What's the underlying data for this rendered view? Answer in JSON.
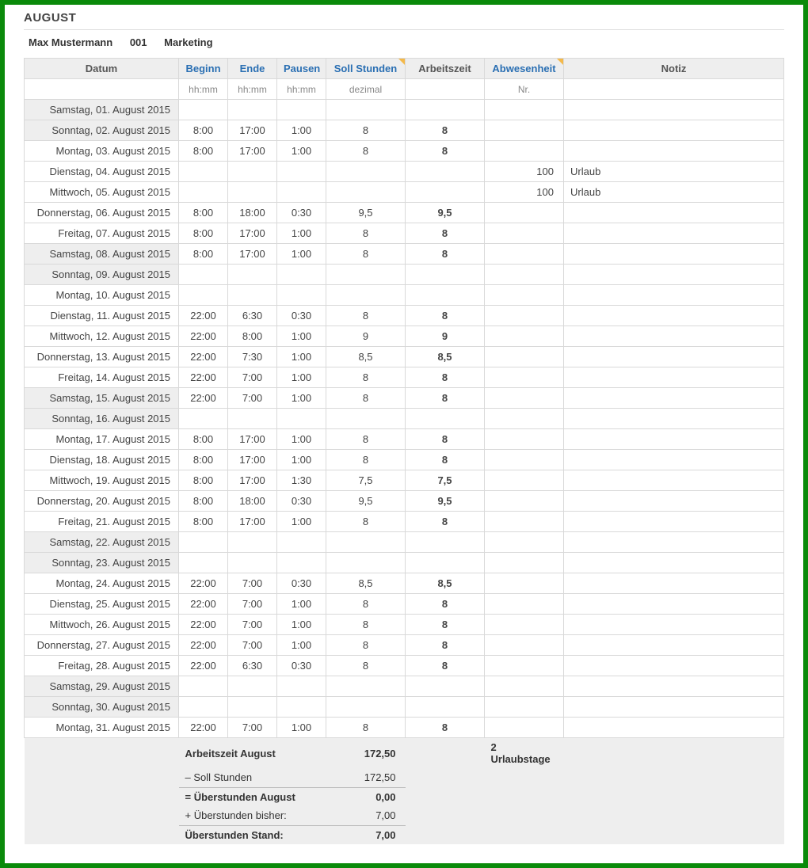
{
  "month_title": "AUGUST",
  "employee": {
    "name": "Max Mustermann",
    "id": "001",
    "dept": "Marketing"
  },
  "columns": {
    "date": {
      "label": "Datum",
      "sub": ""
    },
    "begin": {
      "label": "Beginn",
      "sub": "hh:mm"
    },
    "end": {
      "label": "Ende",
      "sub": "hh:mm"
    },
    "pause": {
      "label": "Pausen",
      "sub": "hh:mm"
    },
    "soll": {
      "label": "Soll Stunden",
      "sub": "dezimal"
    },
    "work": {
      "label": "Arbeitszeit",
      "sub": ""
    },
    "absent": {
      "label": "Abwesenheit",
      "sub": "Nr."
    },
    "note": {
      "label": "Notiz",
      "sub": ""
    }
  },
  "rows": [
    {
      "date": "Samstag, 01. August 2015",
      "weekend": true
    },
    {
      "date": "Sonntag, 02. August 2015",
      "weekend": true,
      "begin": "8:00",
      "end": "17:00",
      "pause": "1:00",
      "soll": "8",
      "work": "8"
    },
    {
      "date": "Montag, 03. August 2015",
      "begin": "8:00",
      "end": "17:00",
      "pause": "1:00",
      "soll": "8",
      "work": "8"
    },
    {
      "date": "Dienstag, 04. August 2015",
      "absent": "100",
      "note": "Urlaub"
    },
    {
      "date": "Mittwoch, 05. August 2015",
      "absent": "100",
      "note": "Urlaub"
    },
    {
      "date": "Donnerstag, 06. August 2015",
      "begin": "8:00",
      "end": "18:00",
      "pause": "0:30",
      "soll": "9,5",
      "work": "9,5"
    },
    {
      "date": "Freitag, 07. August 2015",
      "begin": "8:00",
      "end": "17:00",
      "pause": "1:00",
      "soll": "8",
      "work": "8"
    },
    {
      "date": "Samstag, 08. August 2015",
      "weekend": true,
      "begin": "8:00",
      "end": "17:00",
      "pause": "1:00",
      "soll": "8",
      "work": "8"
    },
    {
      "date": "Sonntag, 09. August 2015",
      "weekend": true
    },
    {
      "date": "Montag, 10. August 2015"
    },
    {
      "date": "Dienstag, 11. August 2015",
      "begin": "22:00",
      "end": "6:30",
      "pause": "0:30",
      "soll": "8",
      "work": "8"
    },
    {
      "date": "Mittwoch, 12. August 2015",
      "begin": "22:00",
      "end": "8:00",
      "pause": "1:00",
      "soll": "9",
      "work": "9"
    },
    {
      "date": "Donnerstag, 13. August 2015",
      "begin": "22:00",
      "end": "7:30",
      "pause": "1:00",
      "soll": "8,5",
      "work": "8,5"
    },
    {
      "date": "Freitag, 14. August 2015",
      "begin": "22:00",
      "end": "7:00",
      "pause": "1:00",
      "soll": "8",
      "work": "8"
    },
    {
      "date": "Samstag, 15. August 2015",
      "weekend": true,
      "begin": "22:00",
      "end": "7:00",
      "pause": "1:00",
      "soll": "8",
      "work": "8"
    },
    {
      "date": "Sonntag, 16. August 2015",
      "weekend": true
    },
    {
      "date": "Montag, 17. August 2015",
      "begin": "8:00",
      "end": "17:00",
      "pause": "1:00",
      "soll": "8",
      "work": "8"
    },
    {
      "date": "Dienstag, 18. August 2015",
      "begin": "8:00",
      "end": "17:00",
      "pause": "1:00",
      "soll": "8",
      "work": "8"
    },
    {
      "date": "Mittwoch, 19. August 2015",
      "begin": "8:00",
      "end": "17:00",
      "pause": "1:30",
      "soll": "7,5",
      "work": "7,5"
    },
    {
      "date": "Donnerstag, 20. August 2015",
      "begin": "8:00",
      "end": "18:00",
      "pause": "0:30",
      "soll": "9,5",
      "work": "9,5"
    },
    {
      "date": "Freitag, 21. August 2015",
      "begin": "8:00",
      "end": "17:00",
      "pause": "1:00",
      "soll": "8",
      "work": "8"
    },
    {
      "date": "Samstag, 22. August 2015",
      "weekend": true
    },
    {
      "date": "Sonntag, 23. August 2015",
      "weekend": true
    },
    {
      "date": "Montag, 24. August 2015",
      "begin": "22:00",
      "end": "7:00",
      "pause": "0:30",
      "soll": "8,5",
      "work": "8,5"
    },
    {
      "date": "Dienstag, 25. August 2015",
      "begin": "22:00",
      "end": "7:00",
      "pause": "1:00",
      "soll": "8",
      "work": "8"
    },
    {
      "date": "Mittwoch, 26. August 2015",
      "begin": "22:00",
      "end": "7:00",
      "pause": "1:00",
      "soll": "8",
      "work": "8"
    },
    {
      "date": "Donnerstag, 27. August 2015",
      "begin": "22:00",
      "end": "7:00",
      "pause": "1:00",
      "soll": "8",
      "work": "8"
    },
    {
      "date": "Freitag, 28. August 2015",
      "begin": "22:00",
      "end": "6:30",
      "pause": "0:30",
      "soll": "8",
      "work": "8"
    },
    {
      "date": "Samstag, 29. August 2015",
      "weekend": true
    },
    {
      "date": "Sonntag, 30. August 2015",
      "weekend": true
    },
    {
      "date": "Montag, 31. August 2015",
      "begin": "22:00",
      "end": "7:00",
      "pause": "1:00",
      "soll": "8",
      "work": "8"
    }
  ],
  "summary": {
    "lines": [
      {
        "label": "Arbeitszeit August",
        "value": "172,50",
        "bold": true,
        "divider": false
      },
      {
        "label": "– Soll Stunden",
        "value": "172,50",
        "bold": false,
        "divider": true
      },
      {
        "label": "= Überstunden August",
        "value": "0,00",
        "bold": true,
        "divider": false
      },
      {
        "label": "+ Überstunden bisher:",
        "value": "7,00",
        "bold": false,
        "divider": true
      },
      {
        "label": "Überstunden Stand:",
        "value": "7,00",
        "bold": true,
        "divider": false
      }
    ],
    "vacation": "2 Urlaubstage"
  }
}
